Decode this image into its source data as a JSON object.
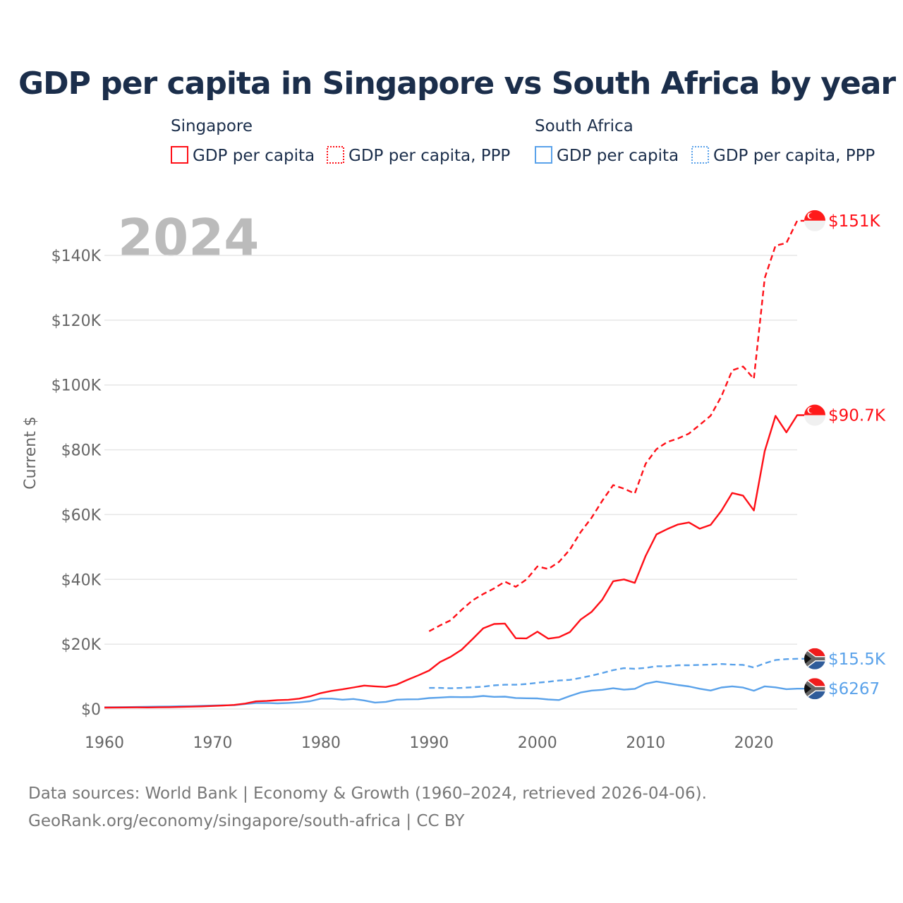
{
  "chart_data": {
    "type": "line",
    "title": "GDP per capita in Singapore vs South Africa by year",
    "ylabel": "Current $",
    "xlabel": "",
    "year_watermark": "2024",
    "xlim": [
      1960,
      2024
    ],
    "ylim": [
      0,
      150000
    ],
    "x_ticks": [
      1960,
      1970,
      1980,
      1990,
      2000,
      2010,
      2020
    ],
    "x_tick_labels": [
      "1960",
      "1970",
      "1980",
      "1990",
      "2000",
      "2010",
      "2020"
    ],
    "y_ticks": [
      0,
      20000,
      40000,
      60000,
      80000,
      100000,
      120000,
      140000
    ],
    "y_tick_labels": [
      "$0",
      "$20K",
      "$40K",
      "$60K",
      "$80K",
      "$100K",
      "$120K",
      "$140K"
    ],
    "grid": true,
    "legend_groups": [
      {
        "name": "Singapore",
        "entries": [
          "GDP per capita",
          "GDP per capita, PPP"
        ]
      },
      {
        "name": "South Africa",
        "entries": [
          "GDP per capita",
          "GDP per capita, PPP"
        ]
      }
    ],
    "legend_placement": "top",
    "series": [
      {
        "name": "Singapore GDP per capita",
        "color": "#ff0f17",
        "dash": false,
        "start": 1960,
        "end_label": "$90.7K",
        "values": [
          428,
          449,
          472,
          511,
          485,
          516,
          566,
          626,
          708,
          812,
          926,
          1071,
          1264,
          1685,
          2342,
          2490,
          2744,
          2846,
          3194,
          3901,
          4928,
          5597,
          6078,
          6633,
          7228,
          6990,
          6800,
          7539,
          9017,
          10395,
          11865,
          14502,
          16136,
          18290,
          21553,
          24915,
          26233,
          26376,
          21829,
          21796,
          23853,
          21700,
          22160,
          23730,
          27608,
          29961,
          33769,
          39432,
          40007,
          38927,
          47237,
          53891,
          55546,
          56967,
          57563,
          55647,
          56828,
          61176,
          66679,
          65831,
          61274,
          79601,
          90466,
          85400,
          90674
        ]
      },
      {
        "name": "Singapore GDP per capita, PPP",
        "color": "#ff0f17",
        "dash": true,
        "start": 1990,
        "end_label": "$151K",
        "values": [
          24000,
          25800,
          27400,
          30600,
          33500,
          35500,
          37200,
          39300,
          37700,
          40000,
          44000,
          43200,
          45400,
          49200,
          54600,
          59000,
          64300,
          69100,
          68000,
          66500,
          75700,
          80200,
          82400,
          83500,
          85000,
          87700,
          90500,
          96500,
          104500,
          105700,
          101900,
          133000,
          143000,
          143800,
          150700
        ]
      },
      {
        "name": "South Africa GDP per capita",
        "color": "#5aa2ea",
        "dash": false,
        "start": 1960,
        "end_label": "$6267",
        "values": [
          530,
          550,
          580,
          630,
          690,
          740,
          790,
          860,
          900,
          980,
          1070,
          1150,
          1180,
          1540,
          1830,
          1840,
          1750,
          1880,
          2050,
          2400,
          3210,
          3190,
          2880,
          3090,
          2640,
          1980,
          2200,
          2870,
          2990,
          3000,
          3370,
          3520,
          3730,
          3660,
          3700,
          4020,
          3740,
          3820,
          3400,
          3300,
          3270,
          2930,
          2760,
          4000,
          5100,
          5680,
          5920,
          6400,
          5960,
          6220,
          7800,
          8460,
          7960,
          7400,
          6960,
          6250,
          5700,
          6630,
          7000,
          6620,
          5650,
          7000,
          6690,
          6120,
          6267
        ]
      },
      {
        "name": "South Africa GDP per capita, PPP",
        "color": "#5aa2ea",
        "dash": true,
        "start": 1990,
        "end_label": "$15.5K",
        "values": [
          6500,
          6500,
          6400,
          6500,
          6700,
          6900,
          7300,
          7500,
          7500,
          7700,
          8100,
          8400,
          8800,
          9000,
          9600,
          10300,
          11100,
          12000,
          12600,
          12400,
          12700,
          13200,
          13200,
          13500,
          13500,
          13600,
          13700,
          13900,
          13700,
          13600,
          12800,
          14100,
          15100,
          15400,
          15500
        ]
      }
    ]
  },
  "source": {
    "line1": "Data sources: World Bank | Economy & Growth (1960–2024, retrieved 2026-04-06).",
    "line2": "GeoRank.org/economy/singapore/south-africa | CC BY"
  }
}
